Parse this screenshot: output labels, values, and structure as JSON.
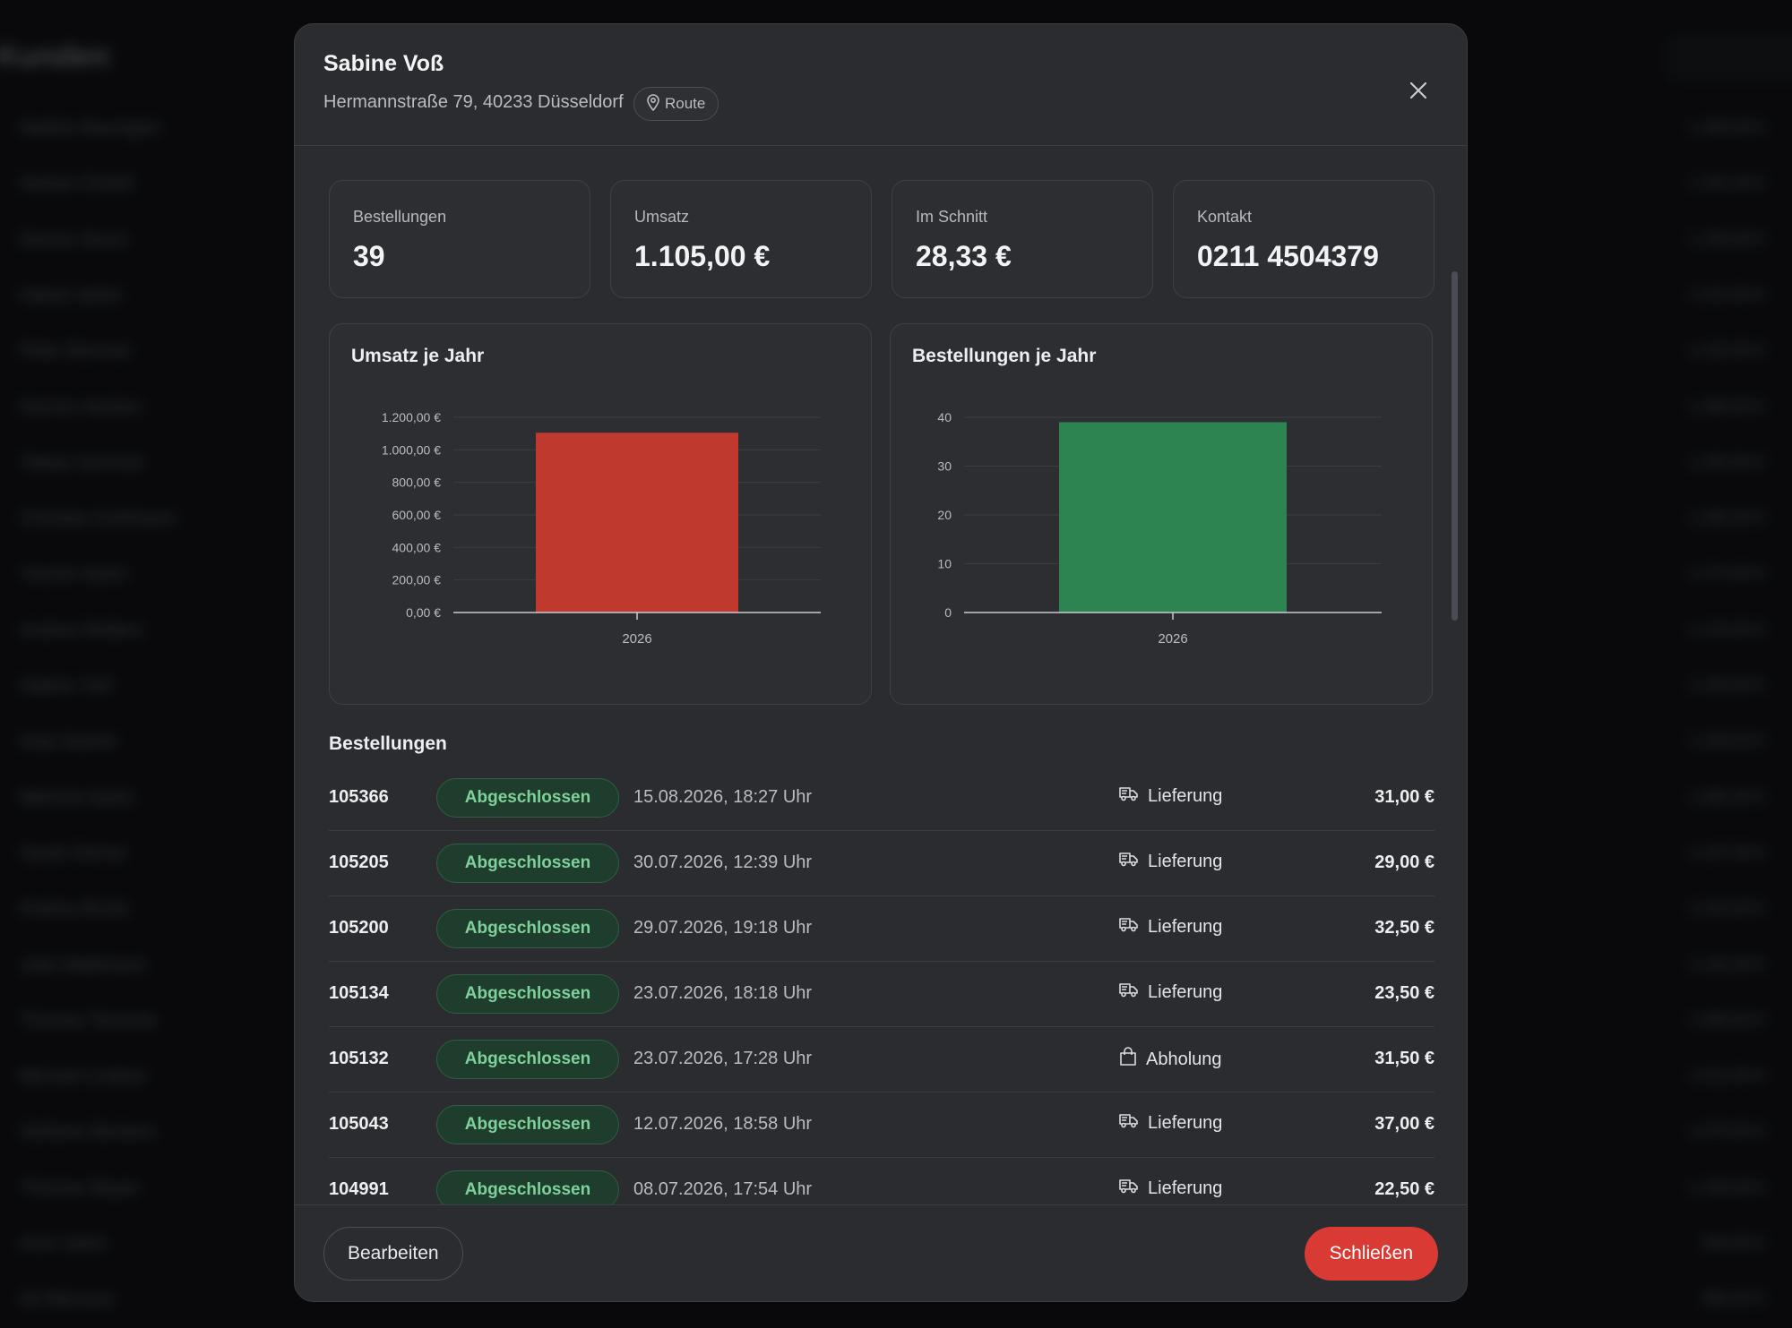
{
  "background": {
    "title": "Kunden",
    "rows": [
      {
        "name": "Nadine Baumgart",
        "value": "1.405,00 €"
      },
      {
        "name": "Serkan Öztürk",
        "value": "1.341,50 €"
      },
      {
        "name": "Dennis Sturm",
        "value": "1.239,00 €"
      },
      {
        "name": "Hakan Şahin",
        "value": "1.313,50 €"
      },
      {
        "name": "Peter Brenner",
        "value": "1.222,00 €"
      },
      {
        "name": "Dennis Hecken",
        "value": "1.308,50 €"
      },
      {
        "name": "Tobias Sommer",
        "value": "1.203,50 €"
      },
      {
        "name": "Christian Kuhlmann",
        "value": "1.282,50 €"
      },
      {
        "name": "Yasmin Aydın",
        "value": "1.274,50 €"
      },
      {
        "name": "Andrea Wolters",
        "value": "1.124,00 €"
      },
      {
        "name": "Sabine Voß",
        "value": "1.105,00 €"
      },
      {
        "name": "Anja Nasser",
        "value": "1.106,50 €"
      },
      {
        "name": "Mehmet Aydın",
        "value": "1.092,00 €"
      },
      {
        "name": "Sarah Dörner",
        "value": "1.247,00 €"
      },
      {
        "name": "Andrea Brück",
        "value": "1.015,50 €"
      },
      {
        "name": "Julia Waldmann",
        "value": "1.102,00 €"
      },
      {
        "name": "Thomas Tertsche",
        "value": "1.099,50 €"
      },
      {
        "name": "Michael Lindner",
        "value": "1.012,50 €"
      },
      {
        "name": "Stefanie Beckers",
        "value": "1.070,00 €"
      },
      {
        "name": "Thomas Mayer",
        "value": "1.106,00 €"
      },
      {
        "name": "Amir Sahin",
        "value": "840,50 €"
      },
      {
        "name": "Ali Mansour",
        "value": "906,00 €"
      }
    ]
  },
  "customer": {
    "name": "Sabine Voß",
    "address": "Hermannstraße 79, 40233 Düsseldorf",
    "route_label": "Route"
  },
  "stats": [
    {
      "label": "Bestellungen",
      "value": "39"
    },
    {
      "label": "Umsatz",
      "value": "1.105,00 €"
    },
    {
      "label": "Im Schnitt",
      "value": "28,33 €"
    },
    {
      "label": "Kontakt",
      "value": "0211 4504379"
    }
  ],
  "chart_data": [
    {
      "type": "bar",
      "title": "Umsatz je Jahr",
      "categories": [
        "2026"
      ],
      "values": [
        1105
      ],
      "ylim": [
        0,
        1200
      ],
      "yticks": [
        0,
        200,
        400,
        600,
        800,
        1000,
        1200
      ],
      "ytick_labels": [
        "0,00 €",
        "200,00 €",
        "400,00 €",
        "600,00 €",
        "800,00 €",
        "1.000,00 €",
        "1.200,00 €"
      ],
      "color": "#c0392f",
      "grid": true
    },
    {
      "type": "bar",
      "title": "Bestellungen je Jahr",
      "categories": [
        "2026"
      ],
      "values": [
        39
      ],
      "ylim": [
        0,
        40
      ],
      "yticks": [
        0,
        10,
        20,
        30,
        40
      ],
      "ytick_labels": [
        "0",
        "10",
        "20",
        "30",
        "40"
      ],
      "color": "#2e8450",
      "grid": true
    }
  ],
  "orders": {
    "title": "Bestellungen",
    "rows": [
      {
        "id": "105366",
        "status": "Abgeschlossen",
        "date": "15.08.2026, 18:27 Uhr",
        "type": "Lieferung",
        "icon": "truck-icon",
        "amount": "31,00 €"
      },
      {
        "id": "105205",
        "status": "Abgeschlossen",
        "date": "30.07.2026, 12:39 Uhr",
        "type": "Lieferung",
        "icon": "truck-icon",
        "amount": "29,00 €"
      },
      {
        "id": "105200",
        "status": "Abgeschlossen",
        "date": "29.07.2026, 19:18 Uhr",
        "type": "Lieferung",
        "icon": "truck-icon",
        "amount": "32,50 €"
      },
      {
        "id": "105134",
        "status": "Abgeschlossen",
        "date": "23.07.2026, 18:18 Uhr",
        "type": "Lieferung",
        "icon": "truck-icon",
        "amount": "23,50 €"
      },
      {
        "id": "105132",
        "status": "Abgeschlossen",
        "date": "23.07.2026, 17:28 Uhr",
        "type": "Abholung",
        "icon": "shopping-bag-icon",
        "amount": "31,50 €"
      },
      {
        "id": "105043",
        "status": "Abgeschlossen",
        "date": "12.07.2026, 18:58 Uhr",
        "type": "Lieferung",
        "icon": "truck-icon",
        "amount": "37,00 €"
      },
      {
        "id": "104991",
        "status": "Abgeschlossen",
        "date": "08.07.2026, 17:54 Uhr",
        "type": "Lieferung",
        "icon": "truck-icon",
        "amount": "22,50 €"
      }
    ]
  },
  "footer": {
    "edit_label": "Bearbeiten",
    "close_label": "Schließen"
  },
  "colors": {
    "accent_red": "#d93a33",
    "status_green": "#7fd19b"
  }
}
